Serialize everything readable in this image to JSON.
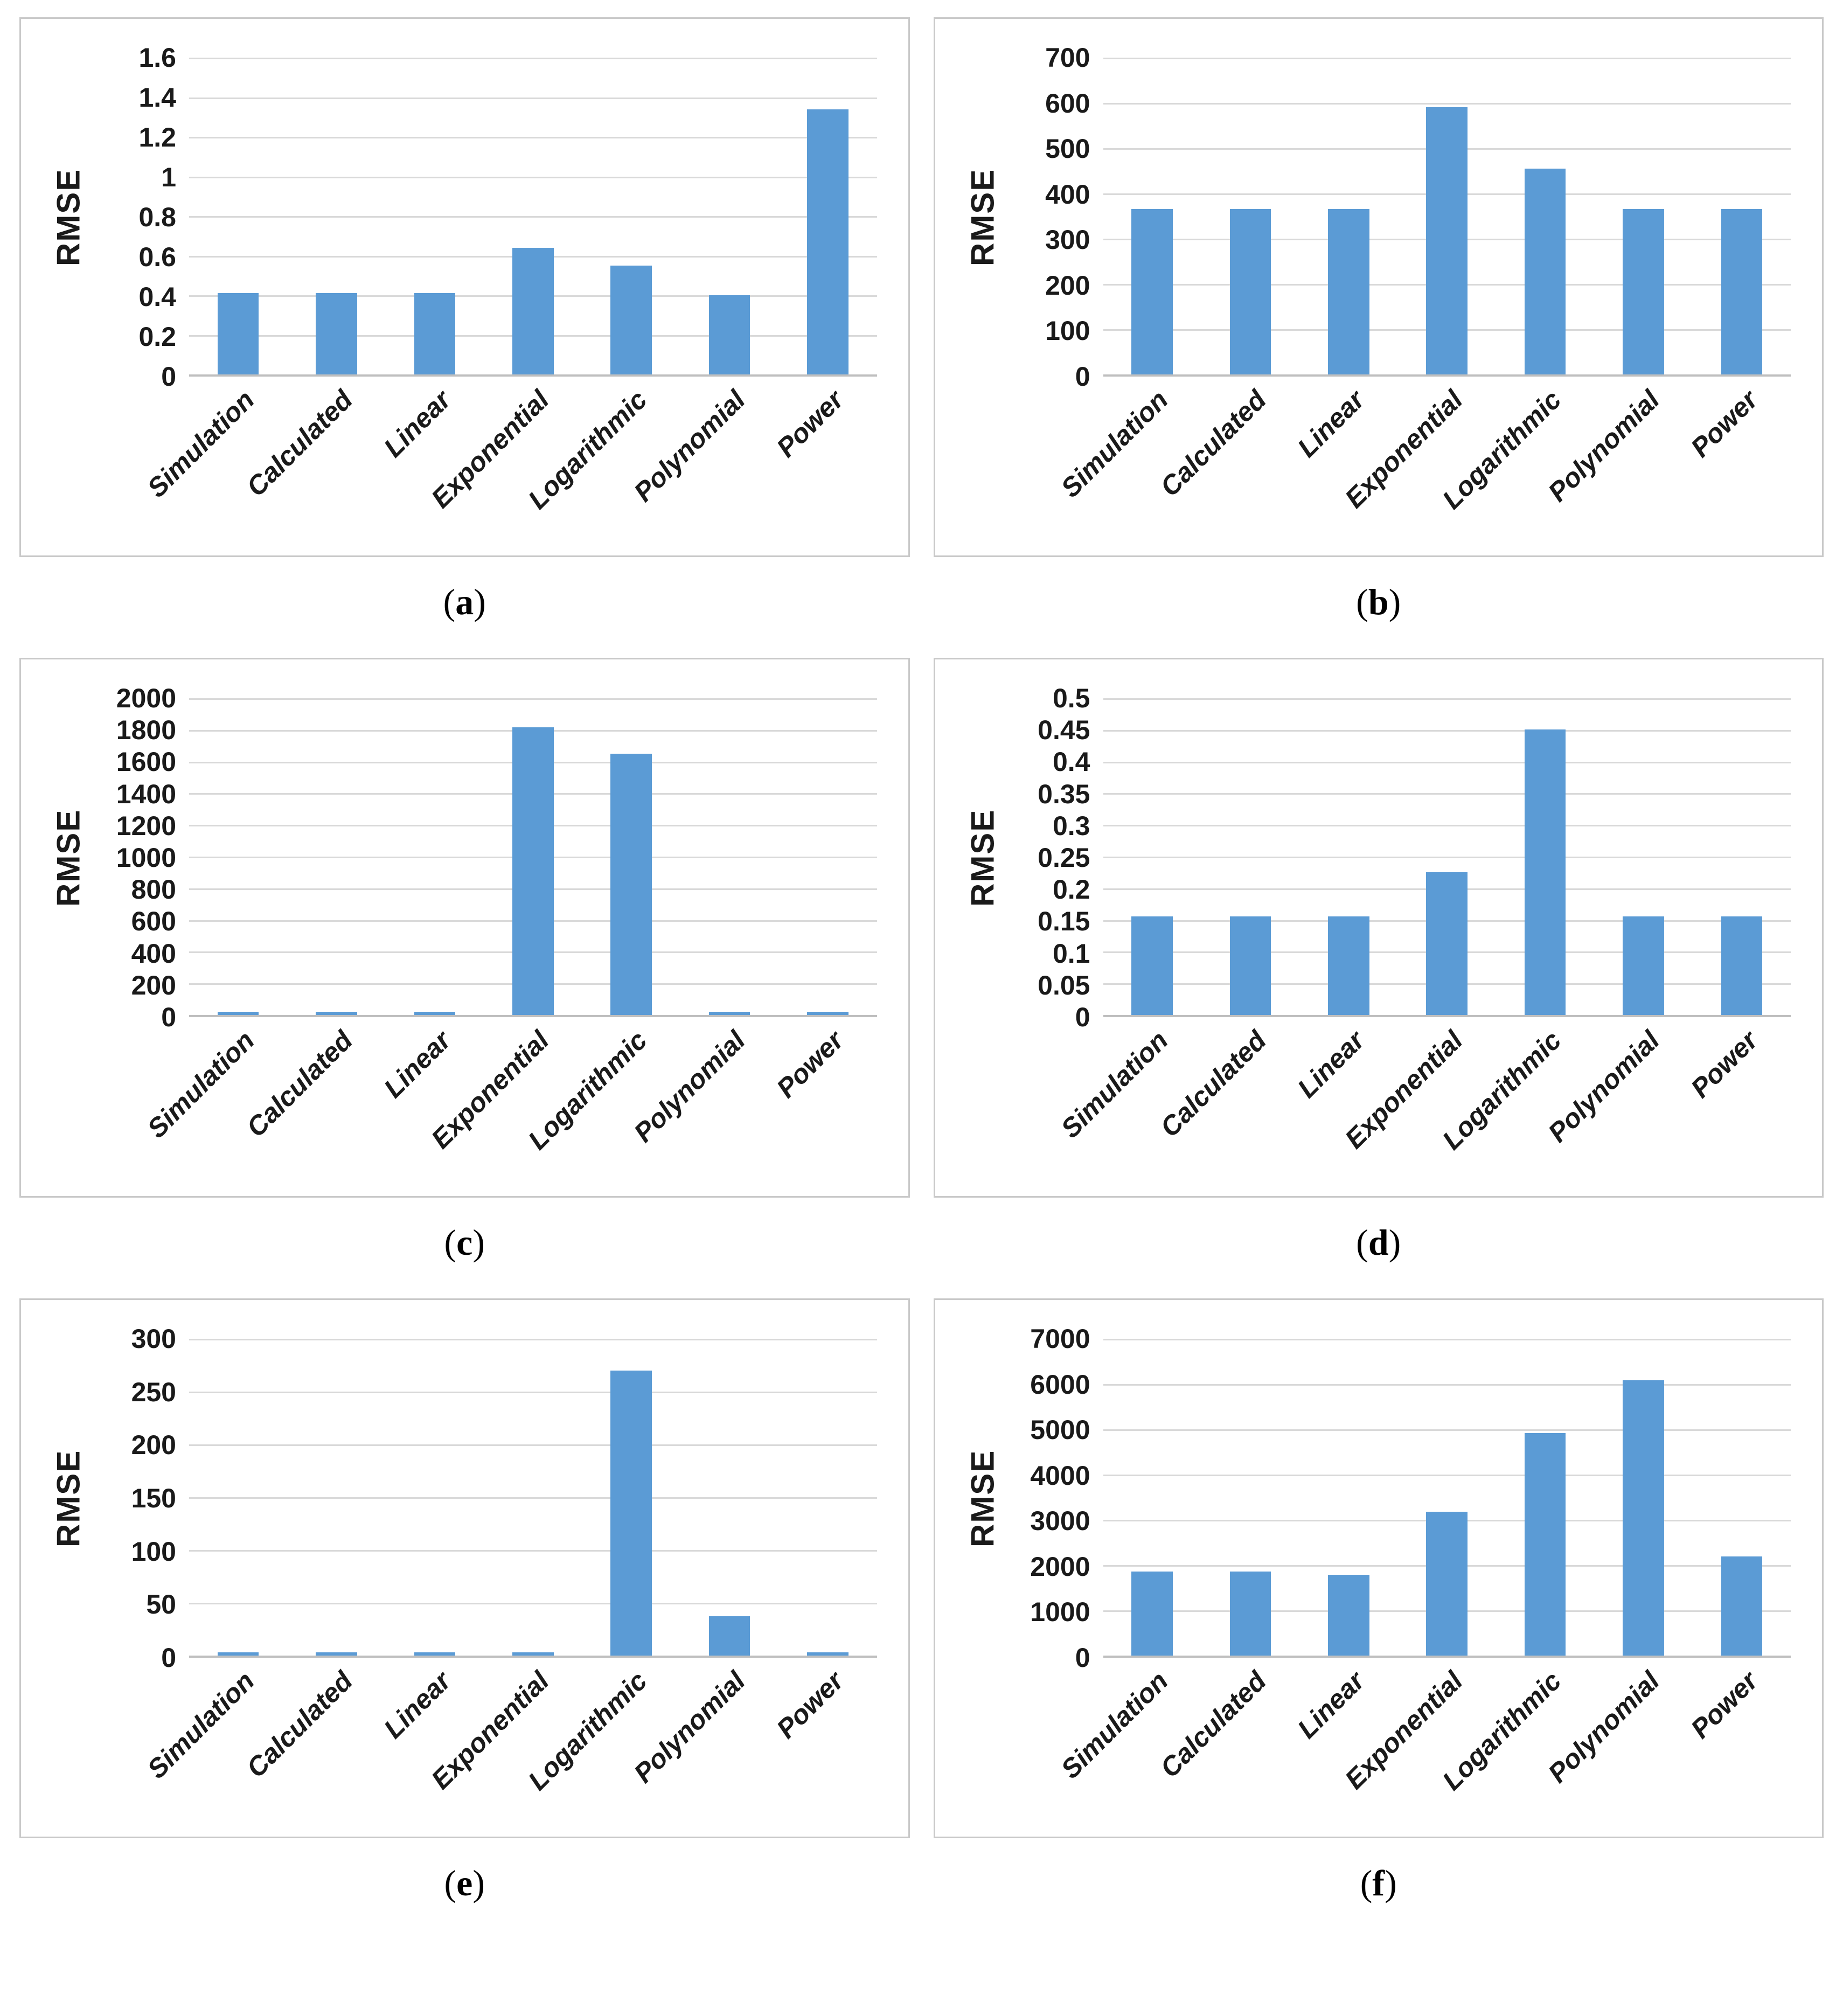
{
  "page": {
    "background": "#ffffff"
  },
  "colors": {
    "bar": "#5b9bd5",
    "gridline": "#d9d9d9",
    "axis_line": "#bfbfbf",
    "panel_border": "#c9c9c9",
    "text": "#1a1a1a"
  },
  "captions": [
    {
      "open": "(",
      "letter": "a",
      "close": ")"
    },
    {
      "open": "(",
      "letter": "b",
      "close": ")"
    },
    {
      "open": "(",
      "letter": "c",
      "close": ")"
    },
    {
      "open": "(",
      "letter": "d",
      "close": ")"
    },
    {
      "open": "(",
      "letter": "e",
      "close": ")"
    },
    {
      "open": "(",
      "letter": "f",
      "close": ")"
    }
  ],
  "chart_data": [
    {
      "type": "bar",
      "panel": "a",
      "title": "",
      "xlabel": "",
      "ylabel": "RMSE",
      "categories": [
        "Simulation",
        "Calculated",
        "Linear",
        "Exponential",
        "Logarithmic",
        "Polynomial",
        "Power"
      ],
      "values": [
        0.41,
        0.41,
        0.41,
        0.64,
        0.55,
        0.4,
        1.34
      ],
      "ylim": [
        0,
        1.6
      ],
      "ytick_step": 0.2,
      "y_ticks": [
        "1.6",
        "1.4",
        "1.2",
        "1",
        "0.8",
        "0.6",
        "0.4",
        "0.2",
        "0"
      ],
      "grid": true,
      "legend": false,
      "bar_color": "#5b9bd5"
    },
    {
      "type": "bar",
      "panel": "b",
      "title": "",
      "xlabel": "",
      "ylabel": "RMSE",
      "categories": [
        "Simulation",
        "Calculated",
        "Linear",
        "Exponential",
        "Logarithmic",
        "Polynomial",
        "Power"
      ],
      "values": [
        365,
        365,
        365,
        590,
        455,
        365,
        365
      ],
      "ylim": [
        0,
        700
      ],
      "ytick_step": 100,
      "y_ticks": [
        "700",
        "600",
        "500",
        "400",
        "300",
        "200",
        "100",
        "0"
      ],
      "grid": true,
      "legend": false,
      "bar_color": "#5b9bd5"
    },
    {
      "type": "bar",
      "panel": "c",
      "title": "",
      "xlabel": "",
      "ylabel": "RMSE",
      "categories": [
        "Simulation",
        "Calculated",
        "Linear",
        "Exponential",
        "Logarithmic",
        "Polynomial",
        "Power"
      ],
      "values": [
        20,
        20,
        20,
        1815,
        1650,
        20,
        20
      ],
      "ylim": [
        0,
        2000
      ],
      "ytick_step": 200,
      "y_ticks": [
        "2000",
        "1800",
        "1600",
        "1400",
        "1200",
        "1000",
        "800",
        "600",
        "400",
        "200",
        "0"
      ],
      "grid": true,
      "legend": false,
      "bar_color": "#5b9bd5"
    },
    {
      "type": "bar",
      "panel": "d",
      "title": "",
      "xlabel": "",
      "ylabel": "RMSE",
      "categories": [
        "Simulation",
        "Calculated",
        "Linear",
        "Exponential",
        "Logarithmic",
        "Polynomial",
        "Power"
      ],
      "values": [
        0.156,
        0.156,
        0.156,
        0.225,
        0.451,
        0.156,
        0.156
      ],
      "ylim": [
        0,
        0.5
      ],
      "ytick_step": 0.05,
      "y_ticks": [
        "0.5",
        "0.45",
        "0.4",
        "0.35",
        "0.3",
        "0.25",
        "0.2",
        "0.15",
        "0.1",
        "0.05",
        "0"
      ],
      "grid": true,
      "legend": false,
      "bar_color": "#5b9bd5"
    },
    {
      "type": "bar",
      "panel": "e",
      "title": "",
      "xlabel": "",
      "ylabel": "RMSE",
      "categories": [
        "Simulation",
        "Calculated",
        "Linear",
        "Exponential",
        "Logarithmic",
        "Polynomial",
        "Power"
      ],
      "values": [
        3,
        3,
        3,
        3,
        270,
        37,
        3
      ],
      "ylim": [
        0,
        300
      ],
      "ytick_step": 50,
      "y_ticks": [
        "300",
        "250",
        "200",
        "150",
        "100",
        "50",
        "0"
      ],
      "grid": true,
      "legend": false,
      "bar_color": "#5b9bd5"
    },
    {
      "type": "bar",
      "panel": "f",
      "title": "",
      "xlabel": "",
      "ylabel": "RMSE",
      "categories": [
        "Simulation",
        "Calculated",
        "Linear",
        "Exponential",
        "Logarithmic",
        "Polynomial",
        "Power"
      ],
      "values": [
        1860,
        1860,
        1780,
        3180,
        4920,
        6080,
        2190
      ],
      "ylim": [
        0,
        7000
      ],
      "ytick_step": 1000,
      "y_ticks": [
        "7000",
        "6000",
        "5000",
        "4000",
        "3000",
        "2000",
        "1000",
        "0"
      ],
      "grid": true,
      "legend": false,
      "bar_color": "#5b9bd5"
    }
  ]
}
